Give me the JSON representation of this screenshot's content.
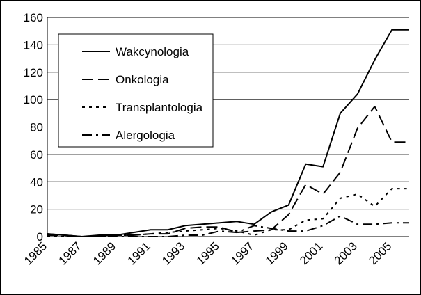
{
  "chart_data": {
    "type": "line",
    "title": "",
    "xlabel": "",
    "ylabel": "",
    "x": [
      1985,
      1986,
      1987,
      1988,
      1989,
      1990,
      1991,
      1992,
      1993,
      1994,
      1995,
      1996,
      1997,
      1998,
      1999,
      2000,
      2001,
      2002,
      2003,
      2004,
      2005,
      2006
    ],
    "ylim": [
      0,
      160
    ],
    "yticks": [
      0,
      20,
      40,
      60,
      80,
      100,
      120,
      140,
      160
    ],
    "xticks": [
      1985,
      1987,
      1989,
      1991,
      1993,
      1995,
      1997,
      1999,
      2001,
      2003,
      2005
    ],
    "grid": "horizontal",
    "legend_position": "top-left",
    "series": [
      {
        "name": "Wakcynologia",
        "style": "solid",
        "values": [
          2,
          1,
          0,
          1,
          1,
          3,
          5,
          5,
          8,
          9,
          10,
          11,
          9,
          18,
          23,
          53,
          51,
          90,
          104,
          129,
          151,
          151
        ]
      },
      {
        "name": "Onkologia",
        "style": "long-dash",
        "values": [
          1,
          1,
          0,
          0,
          1,
          1,
          2,
          2,
          6,
          7,
          7,
          3,
          4,
          5,
          16,
          38,
          31,
          47,
          79,
          95,
          69,
          69
        ]
      },
      {
        "name": "Transplantologia",
        "style": "dotted",
        "values": [
          0,
          0,
          0,
          0,
          1,
          1,
          2,
          3,
          4,
          5,
          6,
          4,
          1,
          5,
          5,
          12,
          13,
          28,
          31,
          22,
          35,
          35
        ]
      },
      {
        "name": "Alergologia",
        "style": "dash-dot",
        "values": [
          2,
          1,
          0,
          0,
          0,
          0,
          0,
          0,
          1,
          1,
          4,
          3,
          8,
          6,
          4,
          4,
          8,
          15,
          9,
          9,
          10,
          10
        ]
      }
    ]
  }
}
